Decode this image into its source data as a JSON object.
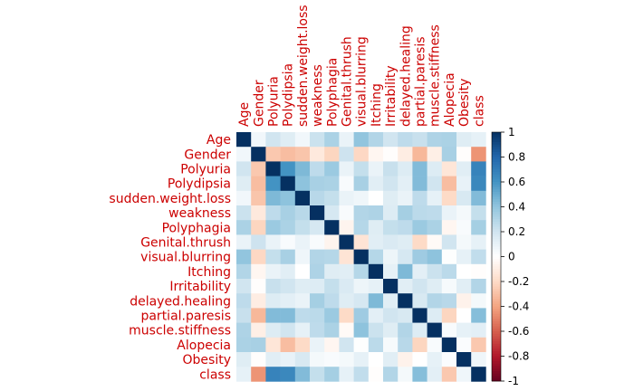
{
  "chart_data": {
    "type": "heatmap",
    "variables": [
      "Age",
      "Gender",
      "Polyuria",
      "Polydipsia",
      "sudden.weight.loss",
      "weakness",
      "Polyphagia",
      "Genital.thrush",
      "visual.blurring",
      "Itching",
      "Irritability",
      "delayed.healing",
      "partial.paresis",
      "muscle.stiffness",
      "Alopecia",
      "Obesity",
      "class"
    ],
    "matrix": [
      [
        1.0,
        0.06,
        0.2,
        0.14,
        0.06,
        0.22,
        0.32,
        0.09,
        0.4,
        0.3,
        0.2,
        0.26,
        0.23,
        0.31,
        0.32,
        0.14,
        0.11
      ],
      [
        0.06,
        1.0,
        -0.27,
        -0.31,
        -0.28,
        -0.12,
        -0.22,
        0.21,
        -0.21,
        -0.05,
        -0.01,
        -0.1,
        -0.33,
        -0.09,
        0.33,
        -0.01,
        -0.45
      ],
      [
        0.2,
        -0.27,
        1.0,
        0.6,
        0.45,
        0.26,
        0.37,
        0.09,
        0.24,
        0.09,
        0.23,
        0.15,
        0.44,
        0.15,
        -0.14,
        0.13,
        0.67
      ],
      [
        0.14,
        -0.31,
        0.6,
        1.0,
        0.41,
        0.33,
        0.32,
        0.03,
        0.33,
        0.13,
        0.2,
        0.12,
        0.44,
        0.2,
        -0.31,
        0.1,
        0.65
      ],
      [
        0.06,
        -0.28,
        0.45,
        0.41,
        1.0,
        0.28,
        0.24,
        0.09,
        0.07,
        -0.0,
        0.14,
        0.09,
        0.26,
        0.11,
        -0.2,
        0.17,
        0.44
      ],
      [
        0.22,
        -0.12,
        0.26,
        0.33,
        0.28,
        1.0,
        0.18,
        0.03,
        0.3,
        0.31,
        0.15,
        0.34,
        0.27,
        0.26,
        0.09,
        0.05,
        0.24
      ],
      [
        0.32,
        -0.22,
        0.37,
        0.32,
        0.24,
        0.18,
        1.0,
        -0.06,
        0.29,
        0.14,
        0.24,
        0.26,
        0.37,
        0.32,
        -0.05,
        0.03,
        0.34
      ],
      [
        0.09,
        0.21,
        0.09,
        0.03,
        0.09,
        0.03,
        -0.06,
        1.0,
        -0.15,
        0.13,
        0.16,
        0.14,
        -0.2,
        -0.03,
        0.2,
        0.05,
        0.11
      ],
      [
        0.4,
        -0.21,
        0.24,
        0.33,
        0.07,
        0.3,
        0.29,
        -0.15,
        1.0,
        0.29,
        0.08,
        0.18,
        0.36,
        0.41,
        0.01,
        0.11,
        0.25
      ],
      [
        0.3,
        -0.05,
        0.09,
        0.13,
        -0.0,
        0.31,
        0.14,
        0.13,
        0.29,
        1.0,
        0.11,
        0.45,
        0.12,
        0.22,
        0.27,
        0.0,
        -0.01
      ],
      [
        0.2,
        -0.01,
        0.23,
        0.2,
        0.14,
        0.15,
        0.24,
        0.16,
        0.08,
        0.11,
        1.0,
        0.13,
        0.2,
        0.14,
        0.04,
        0.13,
        0.3
      ],
      [
        0.26,
        -0.1,
        0.15,
        0.12,
        0.09,
        0.34,
        0.26,
        0.14,
        0.18,
        0.45,
        0.13,
        1.0,
        0.17,
        0.3,
        0.28,
        -0.07,
        0.05
      ],
      [
        0.23,
        -0.33,
        0.44,
        0.44,
        0.26,
        0.27,
        0.37,
        -0.2,
        0.36,
        0.12,
        0.2,
        0.17,
        1.0,
        0.15,
        -0.22,
        0.0,
        0.43
      ],
      [
        0.31,
        -0.09,
        0.15,
        0.2,
        0.11,
        0.26,
        0.32,
        -0.03,
        0.41,
        0.22,
        0.14,
        0.3,
        0.15,
        1.0,
        0.03,
        0.11,
        0.12
      ],
      [
        0.32,
        0.33,
        -0.14,
        -0.31,
        -0.2,
        0.09,
        -0.05,
        0.2,
        0.01,
        0.27,
        0.04,
        0.28,
        -0.22,
        0.03,
        1.0,
        0.02,
        -0.27
      ],
      [
        0.14,
        -0.01,
        0.13,
        0.1,
        0.17,
        0.05,
        0.03,
        0.05,
        0.11,
        0.0,
        0.13,
        -0.07,
        0.0,
        0.11,
        0.02,
        1.0,
        0.07
      ],
      [
        0.11,
        -0.45,
        0.67,
        0.65,
        0.44,
        0.24,
        0.34,
        0.11,
        0.25,
        -0.01,
        0.3,
        0.05,
        0.43,
        0.12,
        -0.27,
        0.07,
        1.0
      ]
    ],
    "colorbar": {
      "min": -1,
      "max": 1,
      "ticks": [
        1,
        0.8,
        0.6,
        0.4,
        0.2,
        0,
        -0.2,
        -0.4,
        -0.6,
        -0.8,
        -1
      ],
      "tick_labels": [
        "1",
        "0.8",
        "0.6",
        "0.4",
        "0.2",
        "0",
        "-0.2",
        "-0.4",
        "-0.6",
        "-0.8",
        "-1"
      ],
      "placement": "right"
    },
    "colors": {
      "negative_end": "#67001f",
      "neutral": "#ffffff",
      "positive_end": "#053061",
      "label_color": "#cc0000",
      "tick_color": "#000000"
    }
  }
}
